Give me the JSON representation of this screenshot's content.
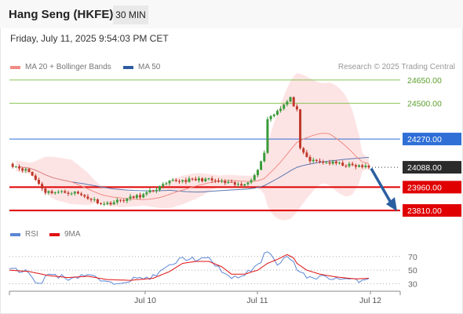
{
  "header": {
    "title": "Hang Seng (HKFE)",
    "interval": "30 MIN",
    "datetime": "Friday, July 11, 2025 9:54:03 PM CET"
  },
  "legend": {
    "items": [
      {
        "label": "MA 20 + Bollinger Bands",
        "color": "#f08c84"
      },
      {
        "label": "MA 50",
        "color": "#2e5c9e"
      }
    ],
    "credit": "Research © 2025 Trading Central"
  },
  "colors": {
    "bull": "#3a9a3a",
    "bear": "#c0392b",
    "resistance": "#2f6fd6",
    "support": "#e00000",
    "target": "#7cbf40",
    "arrow": "#2b5fa0",
    "rsi": "#5b86d6",
    "rsi_ma": "#e01010",
    "band_fill": "#fde3e3"
  },
  "chart_data": [
    {
      "type": "candlestick",
      "ylim": [
        23770,
        24700
      ],
      "x_ticks": [
        "Jul 10",
        "Jul 11",
        "Jul 12"
      ],
      "levels": [
        {
          "value": 24650,
          "label": "24650.00",
          "role": "target"
        },
        {
          "value": 24500,
          "label": "24500.00",
          "role": "target"
        },
        {
          "value": 24270,
          "label": "24270.00",
          "role": "resistance"
        },
        {
          "value": 24088,
          "label": "24088.00",
          "role": "last"
        },
        {
          "value": 23960,
          "label": "23960.00",
          "role": "support"
        },
        {
          "value": 23810,
          "label": "23810.00",
          "role": "support"
        }
      ],
      "last_price": 24088,
      "key_points": [
        {
          "x": 0,
          "y": 24110
        },
        {
          "x": 6,
          "y": 24060
        },
        {
          "x": 11,
          "y": 23930
        },
        {
          "x": 20,
          "y": 23925
        },
        {
          "x": 29,
          "y": 23850
        },
        {
          "x": 41,
          "y": 23910
        },
        {
          "x": 50,
          "y": 24000
        },
        {
          "x": 60,
          "y": 24010
        },
        {
          "x": 71,
          "y": 23970
        },
        {
          "x": 75,
          "y": 24030
        },
        {
          "x": 78,
          "y": 24180
        },
        {
          "x": 79,
          "y": 24400
        },
        {
          "x": 84,
          "y": 24490
        },
        {
          "x": 86,
          "y": 24530
        },
        {
          "x": 88,
          "y": 24450
        },
        {
          "x": 89,
          "y": 24200
        },
        {
          "x": 92,
          "y": 24130
        },
        {
          "x": 99,
          "y": 24115
        },
        {
          "x": 104,
          "y": 24100
        },
        {
          "x": 110,
          "y": 24088
        }
      ]
    },
    {
      "type": "line",
      "title": "RSI",
      "series": [
        {
          "name": "RSI",
          "key_points": [
            [
              0,
              52
            ],
            [
              6,
              47
            ],
            [
              9,
              28
            ],
            [
              12,
              45
            ],
            [
              18,
              38
            ],
            [
              24,
              44
            ],
            [
              30,
              30
            ],
            [
              37,
              36
            ],
            [
              44,
              40
            ],
            [
              49,
              56
            ],
            [
              53,
              68
            ],
            [
              57,
              66
            ],
            [
              61,
              66
            ],
            [
              65,
              50
            ],
            [
              68,
              36
            ],
            [
              72,
              44
            ],
            [
              76,
              56
            ],
            [
              79,
              80
            ],
            [
              82,
              60
            ],
            [
              85,
              70
            ],
            [
              87,
              62
            ],
            [
              88,
              48
            ],
            [
              91,
              40
            ],
            [
              95,
              40
            ],
            [
              100,
              38
            ],
            [
              104,
              36
            ],
            [
              106,
              34
            ],
            [
              110,
              38
            ]
          ]
        },
        {
          "name": "9MA",
          "key_points": [
            [
              0,
              50
            ],
            [
              6,
              48
            ],
            [
              12,
              42
            ],
            [
              18,
              39
            ],
            [
              24,
              41
            ],
            [
              30,
              36
            ],
            [
              37,
              35
            ],
            [
              44,
              38
            ],
            [
              49,
              48
            ],
            [
              53,
              60
            ],
            [
              57,
              63
            ],
            [
              61,
              63
            ],
            [
              65,
              55
            ],
            [
              68,
              44
            ],
            [
              72,
              44
            ],
            [
              76,
              50
            ],
            [
              79,
              60
            ],
            [
              82,
              66
            ],
            [
              85,
              73
            ],
            [
              87,
              68
            ],
            [
              88,
              60
            ],
            [
              91,
              50
            ],
            [
              95,
              44
            ],
            [
              100,
              40
            ],
            [
              104,
              38
            ],
            [
              106,
              37
            ],
            [
              110,
              38
            ]
          ]
        }
      ],
      "levels": [
        70,
        50,
        30
      ],
      "ylim": [
        20,
        85
      ]
    }
  ]
}
